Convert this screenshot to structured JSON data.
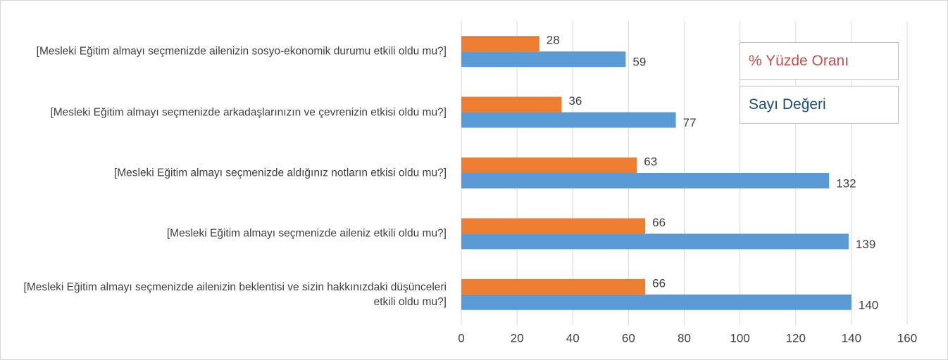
{
  "chart_data": {
    "type": "hbar",
    "categories": [
      "[Mesleki Eğitim almayı seçmenizde ailenizin sosyo-ekonomik durumu etkili oldu mu?]",
      "[Mesleki Eğitim almayı seçmenizde arkadaşlarınızın ve çevrenizin etkisi oldu mu?]",
      "[Mesleki Eğitim almayı seçmenizde aldığınız notların etkisi oldu mu?]",
      "[Mesleki Eğitim almayı seçmenizde aileniz etkili oldu mu?]",
      "[Mesleki Eğitim almayı seçmenizde ailenizin beklentisi ve sizin hakkınızdaki düşünceleri etkili oldu mu?]"
    ],
    "series": [
      {
        "name": "% Yüzde Oranı",
        "color": "#ed7d31",
        "label_color": "#c0504d",
        "values": [
          28,
          36,
          63,
          66,
          66
        ]
      },
      {
        "name": "Sayı Değeri",
        "color": "#5b9bd5",
        "label_color": "#1f4e79",
        "values": [
          59,
          77,
          132,
          139,
          140
        ]
      }
    ],
    "xlim": [
      0,
      160
    ],
    "xticks": [
      0,
      20,
      40,
      60,
      80,
      100,
      120,
      140,
      160
    ],
    "grid": true,
    "legend": "top-right"
  }
}
